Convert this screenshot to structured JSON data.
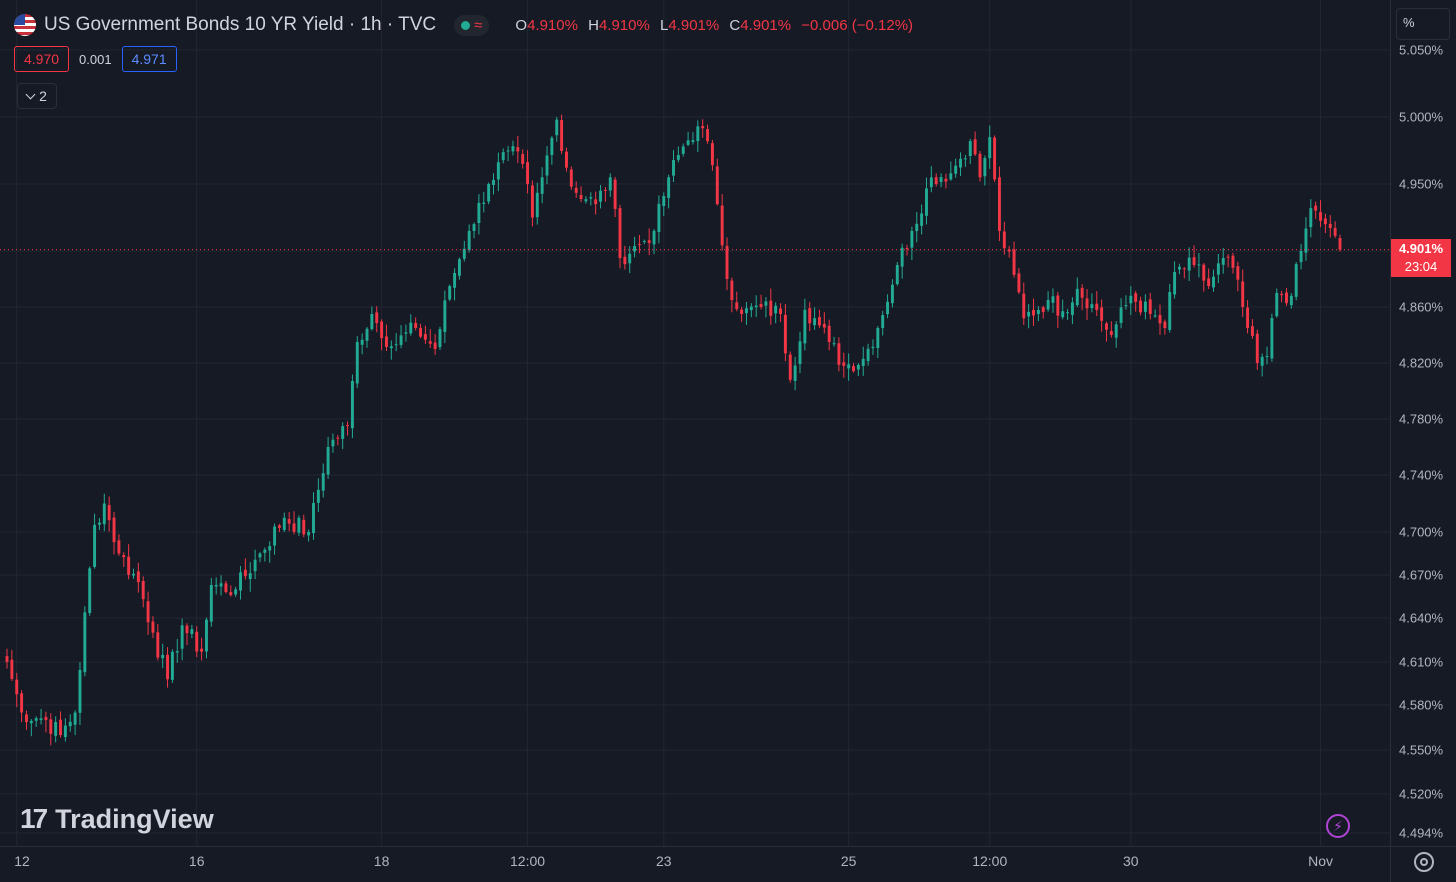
{
  "header": {
    "title": "US Government Bonds 10 YR Yield · 1h · TVC",
    "status_icon": "market-status-dot",
    "ohlc": [
      {
        "key": "O",
        "value": "4.910%"
      },
      {
        "key": "H",
        "value": "4.910%"
      },
      {
        "key": "L",
        "value": "4.901%"
      },
      {
        "key": "C",
        "value": "4.901%"
      }
    ],
    "change": "−0.006 (−0.12%)"
  },
  "quote": {
    "bid": "4.970",
    "spread": "0.001",
    "ask": "4.971"
  },
  "indicators_toggle": {
    "count": "2"
  },
  "scale_unit": "%",
  "current_price": {
    "price": "4.901%",
    "countdown": "23:04"
  },
  "watermark": "TradingView",
  "colors": {
    "up": "#22ab94",
    "down": "#f23645",
    "background": "#161a25",
    "grid": "#232632"
  },
  "chart_data": {
    "type": "candlestick",
    "title": "US Government Bonds 10 YR Yield · 1h · TVC",
    "y_unit": "%",
    "ylim": [
      4.494,
      5.05
    ],
    "y_ticks": [
      "5.050%",
      "5.000%",
      "4.950%",
      "4.900%",
      "4.860%",
      "4.820%",
      "4.780%",
      "4.740%",
      "4.700%",
      "4.670%",
      "4.640%",
      "4.610%",
      "4.580%",
      "4.550%",
      "4.520%",
      "4.494%"
    ],
    "y_tick_values": [
      5.05,
      5.0,
      4.95,
      4.9,
      4.86,
      4.82,
      4.78,
      4.74,
      4.7,
      4.67,
      4.64,
      4.61,
      4.58,
      4.55,
      4.52,
      4.494
    ],
    "x_ticks": [
      "12",
      "16",
      "18",
      "12:00",
      "23",
      "25",
      "12:00",
      "30",
      "Nov"
    ],
    "x_tick_index": [
      2,
      39,
      77,
      107,
      135,
      173,
      202,
      231,
      270
    ],
    "grid": true,
    "last_price": 4.901,
    "candles_count": 275,
    "anchors": [
      [
        0,
        4.61
      ],
      [
        3,
        4.575
      ],
      [
        8,
        4.57
      ],
      [
        11,
        4.56
      ],
      [
        14,
        4.575
      ],
      [
        18,
        4.705
      ],
      [
        20,
        4.72
      ],
      [
        23,
        4.685
      ],
      [
        27,
        4.665
      ],
      [
        30,
        4.63
      ],
      [
        33,
        4.598
      ],
      [
        36,
        4.635
      ],
      [
        40,
        4.617
      ],
      [
        42,
        4.663
      ],
      [
        47,
        4.66
      ],
      [
        52,
        4.685
      ],
      [
        57,
        4.71
      ],
      [
        62,
        4.7
      ],
      [
        66,
        4.76
      ],
      [
        70,
        4.775
      ],
      [
        72,
        4.835
      ],
      [
        75,
        4.855
      ],
      [
        79,
        4.832
      ],
      [
        84,
        4.845
      ],
      [
        88,
        4.83
      ],
      [
        91,
        4.875
      ],
      [
        95,
        4.915
      ],
      [
        99,
        4.95
      ],
      [
        103,
        4.975
      ],
      [
        106,
        4.965
      ],
      [
        108,
        4.925
      ],
      [
        110,
        4.955
      ],
      [
        113,
        4.998
      ],
      [
        116,
        4.948
      ],
      [
        121,
        4.935
      ],
      [
        124,
        4.955
      ],
      [
        126,
        4.895
      ],
      [
        130,
        4.905
      ],
      [
        133,
        4.915
      ],
      [
        136,
        4.955
      ],
      [
        139,
        4.978
      ],
      [
        142,
        4.993
      ],
      [
        144,
        4.982
      ],
      [
        146,
        4.935
      ],
      [
        148,
        4.88
      ],
      [
        151,
        4.855
      ],
      [
        155,
        4.86
      ],
      [
        159,
        4.855
      ],
      [
        161,
        4.808
      ],
      [
        164,
        4.858
      ],
      [
        166,
        4.852
      ],
      [
        169,
        4.835
      ],
      [
        172,
        4.818
      ],
      [
        176,
        4.823
      ],
      [
        179,
        4.845
      ],
      [
        183,
        4.89
      ],
      [
        186,
        4.915
      ],
      [
        190,
        4.955
      ],
      [
        194,
        4.958
      ],
      [
        198,
        4.982
      ],
      [
        200,
        4.955
      ],
      [
        202,
        4.985
      ],
      [
        204,
        4.915
      ],
      [
        207,
        4.883
      ],
      [
        209,
        4.852
      ],
      [
        214,
        4.865
      ],
      [
        217,
        4.857
      ],
      [
        220,
        4.873
      ],
      [
        223,
        4.862
      ],
      [
        227,
        4.84
      ],
      [
        231,
        4.868
      ],
      [
        235,
        4.855
      ],
      [
        238,
        4.845
      ],
      [
        240,
        4.885
      ],
      [
        244,
        4.89
      ],
      [
        247,
        4.875
      ],
      [
        250,
        4.895
      ],
      [
        252,
        4.888
      ],
      [
        255,
        4.845
      ],
      [
        257,
        4.82
      ],
      [
        259,
        4.825
      ],
      [
        261,
        4.87
      ],
      [
        264,
        4.868
      ],
      [
        266,
        4.9
      ],
      [
        268,
        4.932
      ],
      [
        271,
        4.92
      ],
      [
        274,
        4.901
      ]
    ]
  }
}
